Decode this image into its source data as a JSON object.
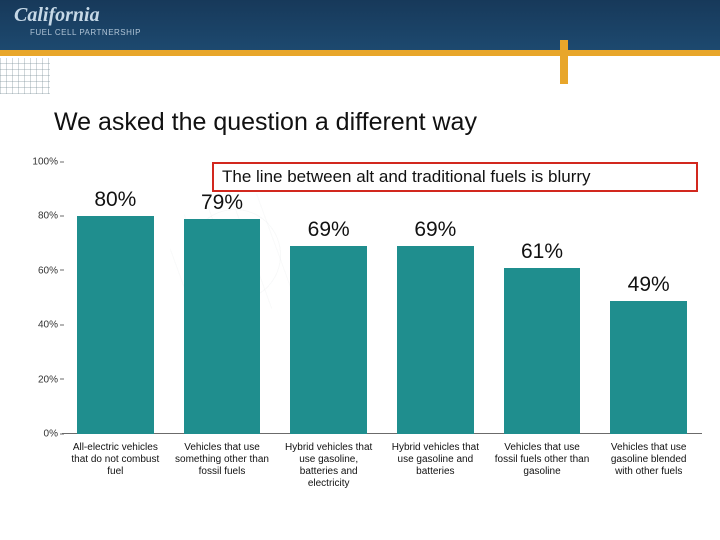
{
  "brand": {
    "name": "California",
    "sub": "FUEL CELL PARTNERSHIP"
  },
  "title": "We asked the question a different way",
  "callout": "The line between alt and traditional fuels is blurry",
  "chart": {
    "type": "bar",
    "ylim": [
      0,
      100
    ],
    "ytick_step": 20,
    "yticks": [
      0,
      20,
      40,
      60,
      80,
      100
    ],
    "ytick_labels": [
      "0%",
      "20%",
      "40%",
      "60%",
      "80%",
      "100%"
    ],
    "bar_color": "#1f8e8e",
    "axis_color": "#6b6b6b",
    "callout_border": "#d2281e",
    "tick_fontsize": 10,
    "value_fontsize": 21,
    "xlabel_fontsize": 10,
    "series": [
      {
        "value": 80,
        "label": "80%",
        "xlabel": "All-electric vehicles that do not combust fuel"
      },
      {
        "value": 79,
        "label": "79%",
        "xlabel": "Vehicles that use something other than fossil fuels"
      },
      {
        "value": 69,
        "label": "69%",
        "xlabel": "Hybrid vehicles that use gasoline, batteries and electricity"
      },
      {
        "value": 69,
        "label": "69%",
        "xlabel": "Hybrid vehicles that use gasoline and batteries"
      },
      {
        "value": 61,
        "label": "61%",
        "xlabel": "Vehicles that use fossil fuels other than gasoline"
      },
      {
        "value": 49,
        "label": "49%",
        "xlabel": "Vehicles that use gasoline blended with other fuels"
      }
    ]
  }
}
